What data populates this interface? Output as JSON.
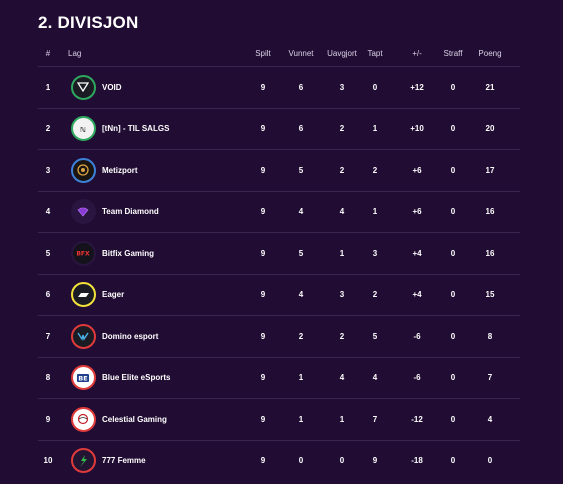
{
  "header": {
    "title": "2. DIVISJON"
  },
  "columns": {
    "num": "#",
    "team": "Lag",
    "played": "Spilt",
    "won": "Vunnet",
    "draw": "Uavgjort",
    "lost": "Tapt",
    "diff": "+/-",
    "straff": "Straff",
    "points": "Poeng"
  },
  "rows": [
    {
      "num": "1",
      "team": "VOID",
      "played": "9",
      "won": "6",
      "draw": "3",
      "lost": "0",
      "diff": "+12",
      "straff": "0",
      "points": "21",
      "logo_icon": "void-logo-icon",
      "ring_color": "#2ea85e",
      "fill": "#1b1b24"
    },
    {
      "num": "2",
      "team": "[tNn] - TIL SALGS",
      "played": "9",
      "won": "6",
      "draw": "2",
      "lost": "1",
      "diff": "+10",
      "straff": "0",
      "points": "20",
      "logo_icon": "tnn-logo-icon",
      "ring_color": "#2ea85e",
      "fill": "#f2f2f2"
    },
    {
      "num": "3",
      "team": "Metizport",
      "played": "9",
      "won": "5",
      "draw": "2",
      "lost": "2",
      "diff": "+6",
      "straff": "0",
      "points": "17",
      "logo_icon": "metizport-logo-icon",
      "ring_color": "#3d82d8",
      "fill": "#1a1412"
    },
    {
      "num": "4",
      "team": "Team Diamond",
      "played": "9",
      "won": "4",
      "draw": "4",
      "lost": "1",
      "diff": "+6",
      "straff": "0",
      "points": "16",
      "logo_icon": "diamond-logo-icon",
      "ring_color": "#2a1540",
      "fill": "#2a1540"
    },
    {
      "num": "5",
      "team": "Bitfix Gaming",
      "played": "9",
      "won": "5",
      "draw": "1",
      "lost": "3",
      "diff": "+4",
      "straff": "0",
      "points": "16",
      "logo_icon": "bitfix-logo-icon",
      "ring_color": "#2a1540",
      "fill": "#14121a"
    },
    {
      "num": "6",
      "team": "Eager",
      "played": "9",
      "won": "4",
      "draw": "3",
      "lost": "2",
      "diff": "+4",
      "straff": "0",
      "points": "15",
      "logo_icon": "eager-logo-icon",
      "ring_color": "#f3e23a",
      "fill": "#1b1b24"
    },
    {
      "num": "7",
      "team": "Domino esport",
      "played": "9",
      "won": "2",
      "draw": "2",
      "lost": "5",
      "diff": "-6",
      "straff": "0",
      "points": "8",
      "logo_icon": "domino-logo-icon",
      "ring_color": "#e03b3b",
      "fill": "#1b1b24"
    },
    {
      "num": "8",
      "team": "Blue Elite eSports",
      "played": "9",
      "won": "1",
      "draw": "4",
      "lost": "4",
      "diff": "-6",
      "straff": "0",
      "points": "7",
      "logo_icon": "blue-elite-logo-icon",
      "ring_color": "#e03b3b",
      "fill": "#ffffff"
    },
    {
      "num": "9",
      "team": "Celestial Gaming",
      "played": "9",
      "won": "1",
      "draw": "1",
      "lost": "7",
      "diff": "-12",
      "straff": "0",
      "points": "4",
      "logo_icon": "celestial-logo-icon",
      "ring_color": "#e03b3b",
      "fill": "#ffffff"
    },
    {
      "num": "10",
      "team": "777 Femme",
      "played": "9",
      "won": "0",
      "draw": "0",
      "lost": "9",
      "diff": "-18",
      "straff": "0",
      "points": "0",
      "logo_icon": "777-femme-logo-icon",
      "ring_color": "#e03b3b",
      "fill": "#241433"
    }
  ]
}
